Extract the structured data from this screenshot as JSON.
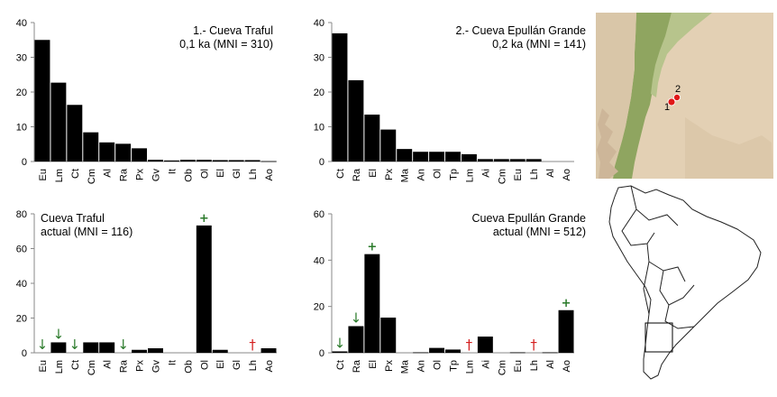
{
  "colors": {
    "bar": "#000000",
    "decrease": "#2a7a2a",
    "increase": "#2a7a2a",
    "extinct": "#d42020",
    "site_dot": "#e01818"
  },
  "chart_data": [
    {
      "type": "bar",
      "title": "1.- Cueva Traful",
      "subtitle": "0,1 ka (MNI = 310)",
      "categories": [
        "Eu",
        "Lm",
        "Ct",
        "Cm",
        "Al",
        "Ra",
        "Px",
        "Gv",
        "It",
        "Ob",
        "Ol",
        "El",
        "Gl",
        "Lh",
        "Ao"
      ],
      "values": [
        35,
        22.7,
        16.3,
        8.4,
        5.5,
        5.1,
        3.8,
        0.5,
        0.3,
        0.5,
        0.5,
        0.4,
        0.4,
        0.4,
        0.1
      ],
      "ylim": [
        0,
        40
      ],
      "yticks": [
        0,
        10,
        20,
        30,
        40
      ],
      "xlabel": "",
      "ylabel": "",
      "grid": false,
      "legend": "none"
    },
    {
      "type": "bar",
      "title": "2.- Cueva Epullán Grande",
      "subtitle": "0,2 ka (MNI = 141)",
      "categories": [
        "Ct",
        "Ra",
        "El",
        "Px",
        "Ma",
        "An",
        "Ol",
        "Tp",
        "Lm",
        "Ai",
        "Cm",
        "Eu",
        "Lh",
        "Al",
        "Ao"
      ],
      "values": [
        36.9,
        23.4,
        13.5,
        9.2,
        3.6,
        2.8,
        2.8,
        2.8,
        2.1,
        0.7,
        0.7,
        0.7,
        0.7,
        0,
        0
      ],
      "ylim": [
        0,
        40
      ],
      "yticks": [
        0,
        10,
        20,
        30,
        40
      ],
      "xlabel": "",
      "ylabel": "",
      "grid": false,
      "legend": "none"
    },
    {
      "type": "bar",
      "title": "Cueva Traful",
      "subtitle": "actual (MNI = 116)",
      "categories": [
        "Eu",
        "Lm",
        "Ct",
        "Cm",
        "Al",
        "Ra",
        "Px",
        "Gv",
        "It",
        "Ob",
        "Ol",
        "El",
        "Gl",
        "Lh",
        "Ao"
      ],
      "values": [
        0,
        6,
        0,
        6,
        6,
        0,
        1.7,
        2.6,
        0,
        0,
        73.3,
        1.7,
        0,
        0,
        2.6
      ],
      "ylim": [
        0,
        80
      ],
      "yticks": [
        0,
        20,
        40,
        60,
        80
      ],
      "markers": [
        {
          "category": "Eu",
          "symbol": "↓",
          "kind": "decrease"
        },
        {
          "category": "Lm",
          "symbol": "↓",
          "kind": "decrease"
        },
        {
          "category": "Ct",
          "symbol": "↓",
          "kind": "decrease"
        },
        {
          "category": "Ra",
          "symbol": "↓",
          "kind": "decrease"
        },
        {
          "category": "Ol",
          "symbol": "+",
          "kind": "increase"
        },
        {
          "category": "Lh",
          "symbol": "†",
          "kind": "extinct"
        }
      ],
      "xlabel": "",
      "ylabel": "",
      "grid": false,
      "legend": "none"
    },
    {
      "type": "bar",
      "title": "Cueva Epullán Grande",
      "subtitle": "actual (MNI = 512)",
      "categories": [
        "Ct",
        "Ra",
        "El",
        "Px",
        "Ma",
        "An",
        "Ol",
        "Tp",
        "Lm",
        "Ai",
        "Cm",
        "Eu",
        "Lh",
        "Al",
        "Ao"
      ],
      "values": [
        0.6,
        11.5,
        42.6,
        15.2,
        0,
        0.2,
        2.1,
        1.4,
        0,
        7,
        0,
        0.2,
        0,
        0.2,
        18.4
      ],
      "ylim": [
        0,
        60
      ],
      "yticks": [
        0,
        20,
        40,
        60
      ],
      "markers": [
        {
          "category": "Ct",
          "symbol": "↓",
          "kind": "decrease"
        },
        {
          "category": "Ra",
          "symbol": "↓",
          "kind": "decrease"
        },
        {
          "category": "El",
          "symbol": "+",
          "kind": "increase"
        },
        {
          "category": "Lm",
          "symbol": "†",
          "kind": "extinct"
        },
        {
          "category": "Lh",
          "symbol": "†",
          "kind": "extinct"
        },
        {
          "category": "Ao",
          "symbol": "+",
          "kind": "increase"
        }
      ],
      "xlabel": "",
      "ylabel": "",
      "grid": false,
      "legend": "none"
    }
  ],
  "map_regional": {
    "site_labels": [
      "1",
      "2"
    ]
  }
}
